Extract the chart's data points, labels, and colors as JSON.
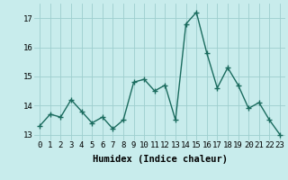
{
  "x": [
    0,
    1,
    2,
    3,
    4,
    5,
    6,
    7,
    8,
    9,
    10,
    11,
    12,
    13,
    14,
    15,
    16,
    17,
    18,
    19,
    20,
    21,
    22,
    23
  ],
  "y": [
    13.3,
    13.7,
    13.6,
    14.2,
    13.8,
    13.4,
    13.6,
    13.2,
    13.5,
    14.8,
    14.9,
    14.5,
    14.7,
    13.5,
    16.8,
    17.2,
    15.8,
    14.6,
    15.3,
    14.7,
    13.9,
    14.1,
    13.5,
    13.0
  ],
  "line_color": "#1a6b5e",
  "bg_color": "#c8ecec",
  "grid_color": "#9dcece",
  "xlabel": "Humidex (Indice chaleur)",
  "ylim": [
    12.8,
    17.5
  ],
  "xlim": [
    -0.5,
    23.5
  ],
  "yticks": [
    13,
    14,
    15,
    16,
    17
  ],
  "xtick_labels": [
    "0",
    "1",
    "2",
    "3",
    "4",
    "5",
    "6",
    "7",
    "8",
    "9",
    "10",
    "11",
    "12",
    "13",
    "14",
    "15",
    "16",
    "17",
    "18",
    "19",
    "20",
    "21",
    "22",
    "23"
  ],
  "xlabel_fontsize": 7.5,
  "tick_fontsize": 6.5,
  "marker": "+",
  "marker_size": 4,
  "line_width": 1.0
}
